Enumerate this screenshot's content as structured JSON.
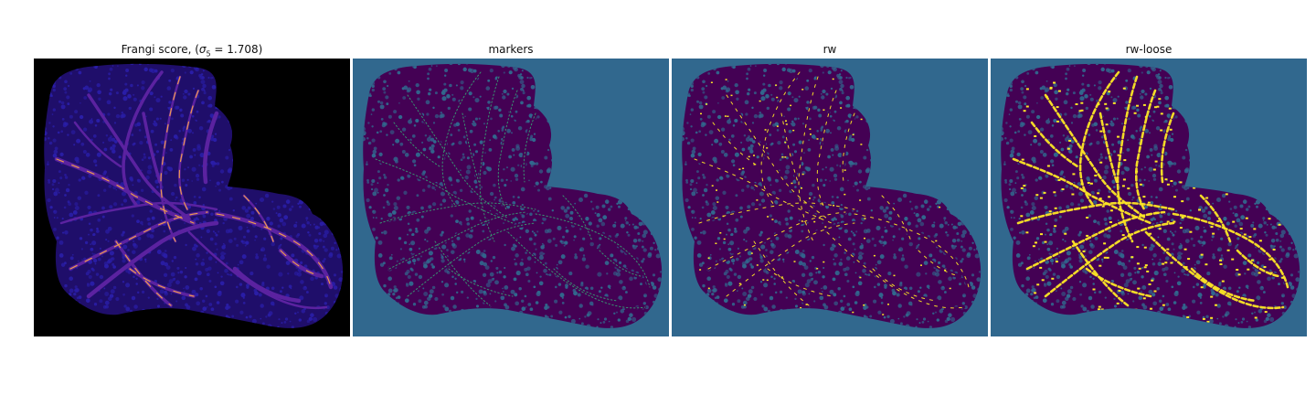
{
  "panels": [
    {
      "title_prefix": "Frangi score, (",
      "sigma_symbol": "σ",
      "sigma_sub": "5",
      "title_suffix": " = 1.708)",
      "background": "#000000",
      "tissue": "#1f0e6a",
      "texture": "#2a1ea8",
      "vessel": "#5b22a0",
      "highlight": "#f3a14a"
    },
    {
      "title": "markers",
      "background": "#31688e",
      "tissue": "#440154",
      "texture": "#31688e",
      "vessel": "#440154",
      "highlight": "#35b779"
    },
    {
      "title": "rw",
      "background": "#31688e",
      "tissue": "#440154",
      "texture": "#31688e",
      "vessel": "#440154",
      "highlight": "#fde725"
    },
    {
      "title": "rw-loose",
      "background": "#31688e",
      "tissue": "#440154",
      "texture": "#31688e",
      "vessel": "#440154",
      "highlight": "#fde725"
    }
  ]
}
